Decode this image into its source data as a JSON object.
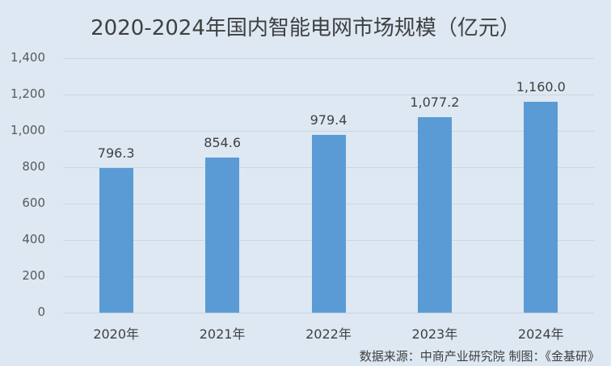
{
  "chart_data": {
    "type": "bar",
    "title": "2020-2024年国内智能电网市场规模（亿元）",
    "categories": [
      "2020年",
      "2021年",
      "2022年",
      "2023年",
      "2024年"
    ],
    "values": [
      796.3,
      854.6,
      979.4,
      1077.2,
      1160.0
    ],
    "data_labels": [
      "796.3",
      "854.6",
      "979.4",
      "1,077.2",
      "1,160.0"
    ],
    "xlabel": "",
    "ylabel": "",
    "ylim": [
      0,
      1400
    ],
    "yticks": [
      "0",
      "200",
      "400",
      "600",
      "800",
      "1,000",
      "1,200",
      "1,400"
    ],
    "grid": true,
    "legend": "none",
    "bar_color": "#5b9bd5",
    "annotation": "数据来源：中商产业研究院  制图：《金基研》"
  }
}
